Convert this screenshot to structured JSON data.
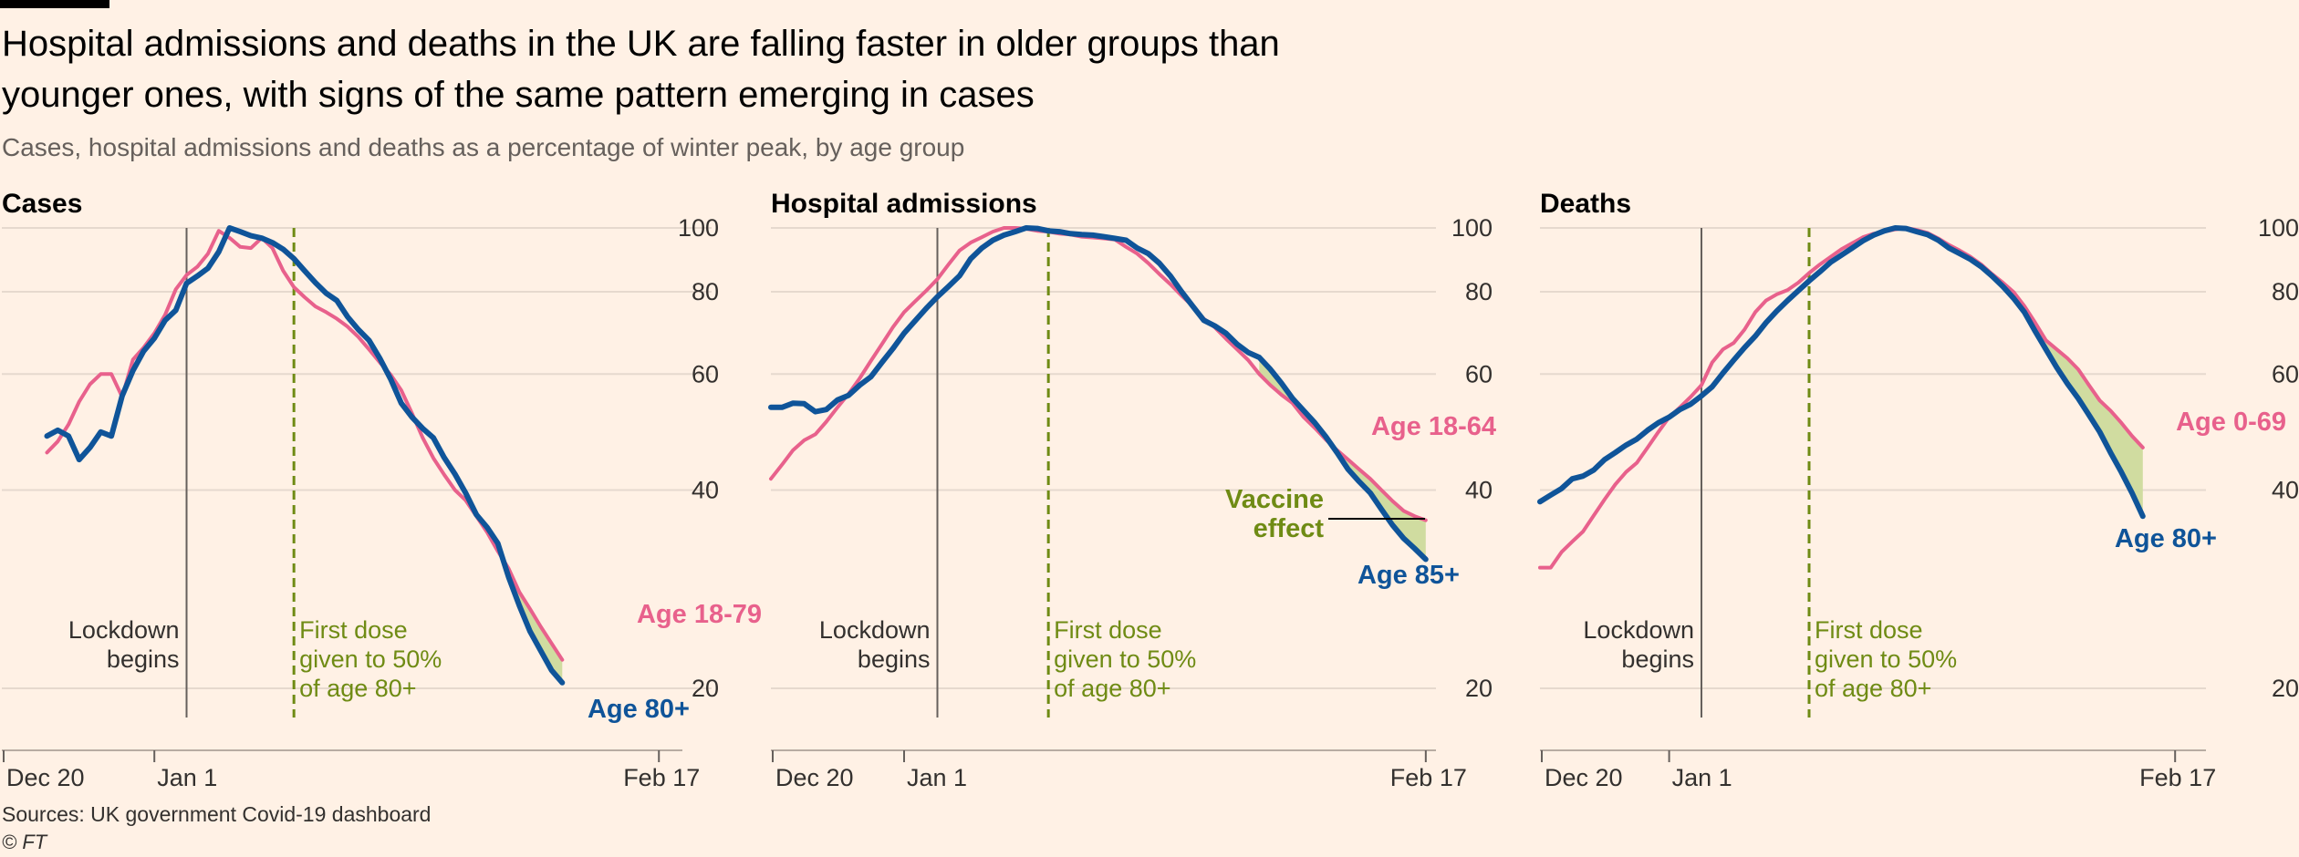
{
  "title": "Hospital admissions and deaths in the UK are falling faster in older groups than younger ones, with signs of the same pattern emerging in cases",
  "subtitle": "Cases, hospital admissions and deaths as a percentage of winter peak, by age group",
  "source": "Sources: UK government Covid-19 dashboard",
  "copyright": "© FT",
  "colors": {
    "background": "#FFF1E5",
    "older": "#0F5499",
    "younger": "#E8618C",
    "annotation": "#6F8B14",
    "fill": "#D0DCA0",
    "grid": "#E6D9CE",
    "text": "#33302E"
  },
  "chart_data": [
    {
      "type": "line",
      "title": "Cases",
      "yscale": "log",
      "ylim": [
        16,
        100
      ],
      "yticks": [
        100,
        80,
        60,
        40,
        20
      ],
      "x_range": [
        0,
        60
      ],
      "xticks": [
        {
          "day": 0,
          "label": "Dec 20"
        },
        {
          "day": 12,
          "label": "Jan 1"
        },
        {
          "day": 59,
          "label": "Feb 17"
        }
      ],
      "lockdown": {
        "day": 15,
        "label": [
          "Lockdown",
          "begins"
        ]
      },
      "first_dose": {
        "day": 25,
        "label": [
          "First dose",
          "given to 50%",
          "of age 80+"
        ]
      },
      "series": [
        {
          "name": "Age 18-79",
          "group": "younger",
          "start_day": 2,
          "values": [
            45.6,
            47.4,
            50.3,
            54.5,
            57.9,
            60.0,
            60.0,
            55.4,
            63.1,
            65.8,
            69.2,
            73.8,
            80.7,
            84.8,
            87.3,
            91.4,
            99.0,
            96.6,
            93.6,
            93.2,
            96.6,
            93.2,
            86.1,
            81.3,
            78.5,
            76.0,
            74.5,
            72.8,
            70.8,
            68.3,
            65.4,
            62.5,
            59.9,
            56.7,
            52.3,
            48.0,
            44.7,
            42.2,
            40.0,
            38.6,
            36.5,
            34.5,
            32.3,
            30.4,
            28.0,
            26.4,
            24.8,
            23.4,
            22.1
          ]
        },
        {
          "name": "Age 80+",
          "group": "older",
          "start_day": 2,
          "values": [
            48.3,
            49.3,
            48.3,
            44.5,
            46.4,
            49.0,
            48.3,
            55.6,
            60.7,
            65.0,
            68.0,
            72.4,
            75.0,
            82.4,
            84.5,
            86.9,
            92.0,
            100.0,
            98.7,
            97.3,
            96.5,
            95.0,
            92.8,
            89.8,
            86.1,
            82.6,
            79.6,
            77.6,
            73.3,
            70.1,
            67.5,
            63.4,
            59.0,
            54.2,
            51.6,
            49.6,
            48.0,
            44.8,
            42.3,
            39.6,
            36.7,
            35.1,
            33.2,
            29.5,
            26.7,
            24.4,
            22.8,
            21.3,
            20.4
          ]
        }
      ]
    },
    {
      "type": "line",
      "title": "Hospital admissions",
      "yscale": "log",
      "ylim": [
        16,
        100
      ],
      "yticks": [
        100,
        80,
        60,
        40,
        20
      ],
      "x_range": [
        0,
        60
      ],
      "xticks": [
        {
          "day": 0,
          "label": "Dec 20"
        },
        {
          "day": 12,
          "label": "Jan 1"
        },
        {
          "day": 59,
          "label": "Feb 17"
        }
      ],
      "lockdown": {
        "day": 15,
        "label": [
          "Lockdown",
          "begins"
        ]
      },
      "first_dose": {
        "day": 25,
        "label": [
          "First dose",
          "given to 50%",
          "of age 80+"
        ]
      },
      "vaccine_effect": [
        "Vaccine",
        "effect"
      ],
      "series": [
        {
          "name": "Age 18-64",
          "group": "younger",
          "start_day": 0,
          "values": [
            41.6,
            43.7,
            46.0,
            47.6,
            48.6,
            50.8,
            53.4,
            56.0,
            59.1,
            62.8,
            66.6,
            70.7,
            74.5,
            77.4,
            80.3,
            83.6,
            88.0,
            92.4,
            95.0,
            96.8,
            98.7,
            100.0,
            100.0,
            99.7,
            99.0,
            98.7,
            98.0,
            97.7,
            97.0,
            96.7,
            96.4,
            96.0,
            93.6,
            91.4,
            88.4,
            85.1,
            82.1,
            78.9,
            76.1,
            72.8,
            70.6,
            67.9,
            65.4,
            63.0,
            60.0,
            57.7,
            55.8,
            54.2,
            51.6,
            49.7,
            47.7,
            46.0,
            44.5,
            43.0,
            41.6,
            40.0,
            38.5,
            37.2,
            36.5,
            36.0
          ]
        },
        {
          "name": "Age 85+",
          "group": "older",
          "start_day": 0,
          "values": [
            53.4,
            53.4,
            54.2,
            54.1,
            52.6,
            53.0,
            54.8,
            55.7,
            57.7,
            59.4,
            62.5,
            65.6,
            69.2,
            72.3,
            75.5,
            78.6,
            81.5,
            84.6,
            89.8,
            93.2,
            95.8,
            97.5,
            98.7,
            100.0,
            99.8,
            99.0,
            98.7,
            98.0,
            97.7,
            97.5,
            97.0,
            96.4,
            95.8,
            93.2,
            91.4,
            88.4,
            84.5,
            80.0,
            76.1,
            72.4,
            71.0,
            69.2,
            66.6,
            64.7,
            63.6,
            61.0,
            58.1,
            55.1,
            52.8,
            50.6,
            48.2,
            45.6,
            43.0,
            41.2,
            39.6,
            37.4,
            35.4,
            33.8,
            32.6,
            31.4
          ]
        }
      ]
    },
    {
      "type": "line",
      "title": "Deaths",
      "yscale": "log",
      "ylim": [
        16,
        100
      ],
      "yticks": [
        100,
        80,
        60,
        40,
        20
      ],
      "x_range": [
        0,
        60
      ],
      "xticks": [
        {
          "day": 0,
          "label": "Dec 20"
        },
        {
          "day": 12,
          "label": "Jan 1"
        },
        {
          "day": 59,
          "label": "Feb 17"
        }
      ],
      "lockdown": {
        "day": 15,
        "label": [
          "Lockdown",
          "begins"
        ]
      },
      "first_dose": {
        "day": 25,
        "label": [
          "First dose",
          "given to 50%",
          "of age 80+"
        ]
      },
      "series": [
        {
          "name": "Age 0-69",
          "group": "younger",
          "start_day": 0,
          "values": [
            30.5,
            30.5,
            32.2,
            33.4,
            34.6,
            36.6,
            38.7,
            40.8,
            42.6,
            44.0,
            46.4,
            49.0,
            51.6,
            53.4,
            55.4,
            57.7,
            62.5,
            65.4,
            66.9,
            70.1,
            74.5,
            77.6,
            79.3,
            80.5,
            82.6,
            85.4,
            88.0,
            90.4,
            92.8,
            94.8,
            96.8,
            98.0,
            98.7,
            99.5,
            100.0,
            99.3,
            98.3,
            96.4,
            94.2,
            92.4,
            90.4,
            88.0,
            85.1,
            82.6,
            79.9,
            76.1,
            71.8,
            67.5,
            65.4,
            63.4,
            61.0,
            57.7,
            54.7,
            52.8,
            50.6,
            48.3,
            46.4
          ]
        },
        {
          "name": "Age 80+",
          "group": "older",
          "start_day": 0,
          "values": [
            38.4,
            39.3,
            40.2,
            41.6,
            42.0,
            42.9,
            44.5,
            45.6,
            46.8,
            47.8,
            49.3,
            50.6,
            51.6,
            53.0,
            54.0,
            55.6,
            57.4,
            60.2,
            63.0,
            65.8,
            68.5,
            71.8,
            74.8,
            77.6,
            80.3,
            83.1,
            85.8,
            88.7,
            90.9,
            93.2,
            95.6,
            97.5,
            99.0,
            100.0,
            99.8,
            98.7,
            97.7,
            95.8,
            93.2,
            91.4,
            89.6,
            87.3,
            84.5,
            81.5,
            78.2,
            74.5,
            69.7,
            65.4,
            61.4,
            58.0,
            55.1,
            52.0,
            49.0,
            45.6,
            42.6,
            39.6,
            36.5
          ]
        }
      ]
    }
  ]
}
